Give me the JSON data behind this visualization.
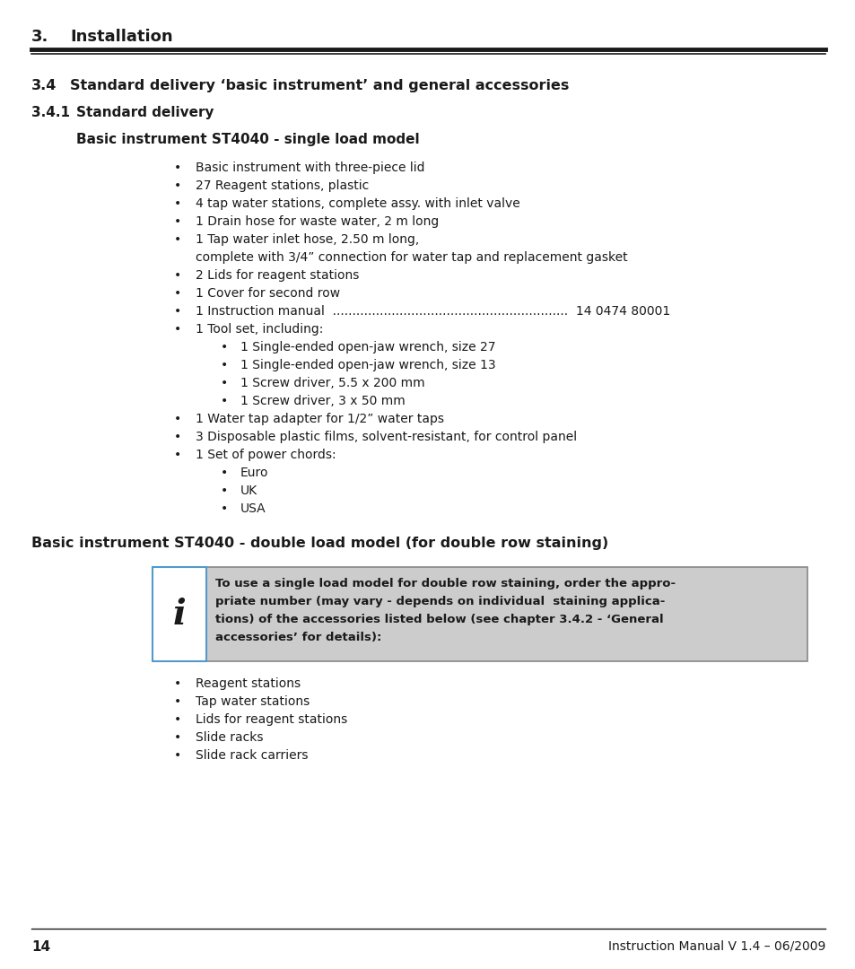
{
  "bg_color": "#ffffff",
  "text_color": "#1a1a1a",
  "page_number": "14",
  "footer_right": "Instruction Manual V 1.4 – 06/2009",
  "info_box_text_lines": [
    "To use a single load model for double row staining, order the appro-",
    "priate number (may vary - depends on individual  staining applica-",
    "tions) of the accessories listed below (see chapter 3.4.2 - ‘General",
    "accessories’ for details):"
  ]
}
